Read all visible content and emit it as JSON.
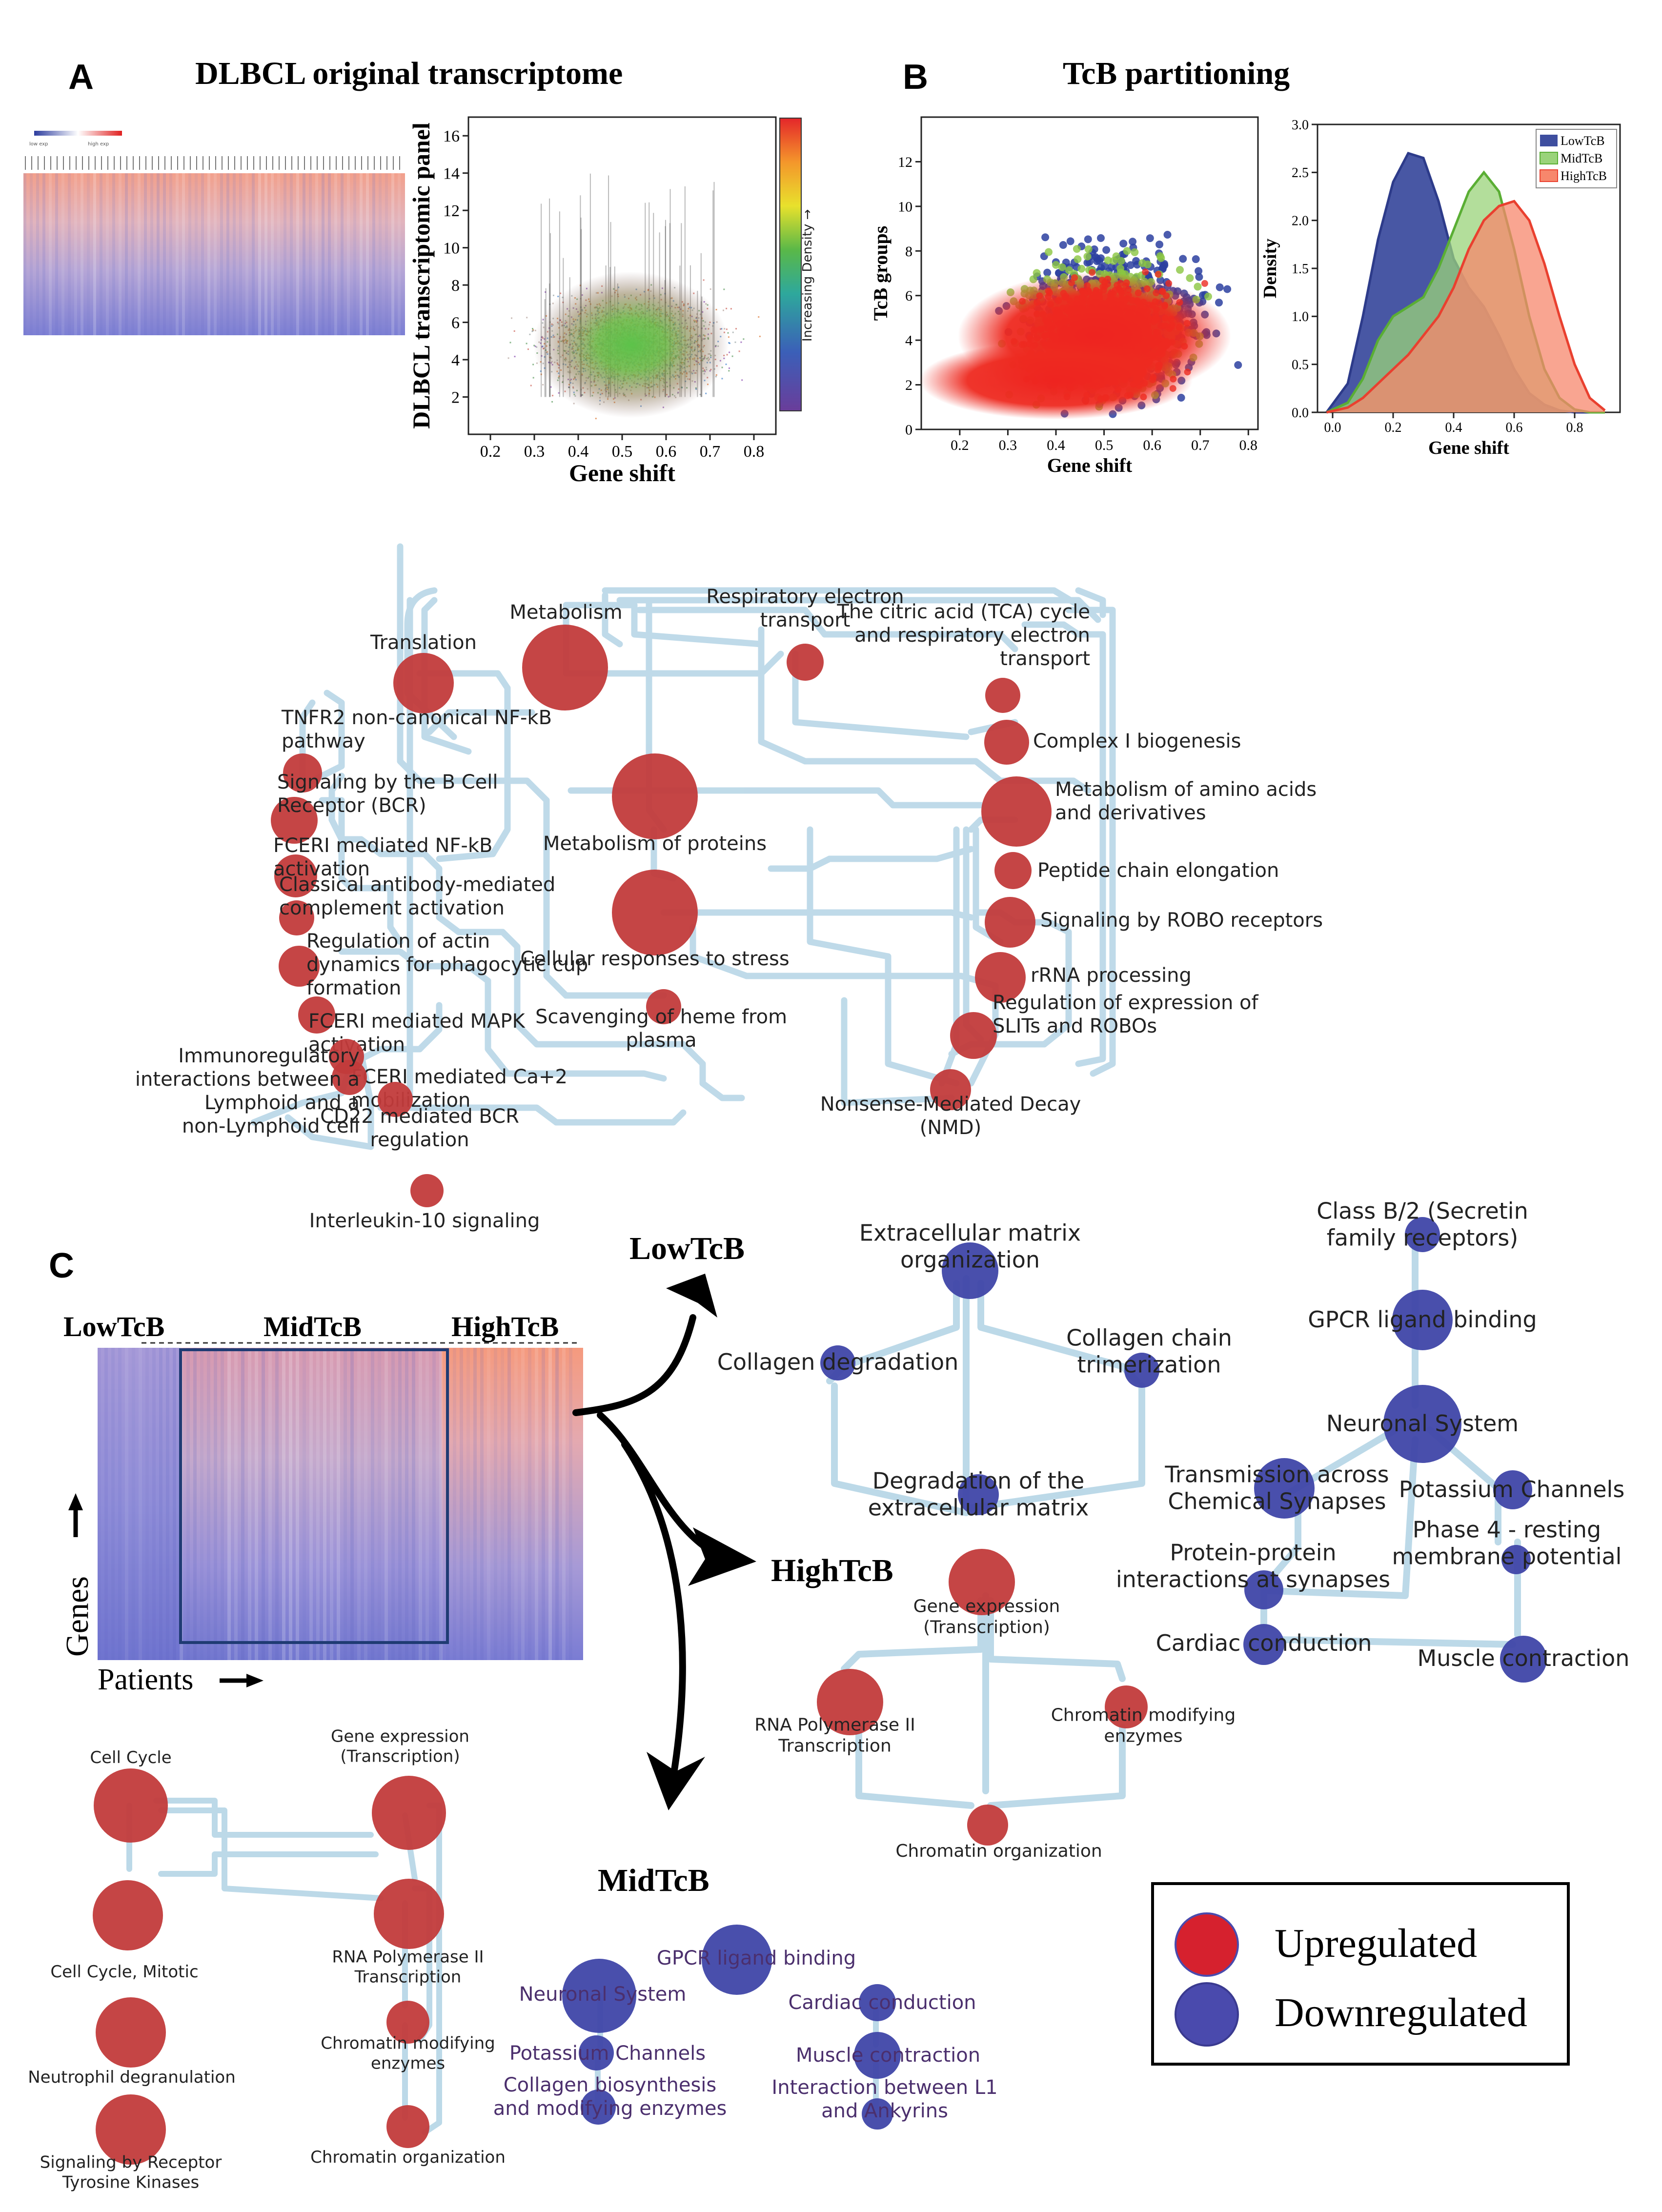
{
  "panel_a": {
    "letter": "A",
    "title": "DLBCL original transcriptome",
    "legend_low": "low exp",
    "legend_high": "high exp",
    "colorbar_label": "Increasing Density →"
  },
  "panel_b": {
    "letter": "B",
    "title": "TcB partitioning"
  },
  "panel_c": {
    "letter": "C",
    "heat_labels": [
      "LowTcB",
      "MidTcB",
      "HighTcB"
    ],
    "genes_label": "Genes",
    "patients_label": "Patients",
    "net_low_title": "LowTcB",
    "net_high_title": "HighTcB",
    "net_mid_title": "MidTcB"
  },
  "legend": {
    "upregulated": "Upregulated",
    "downregulated": "Downregulated",
    "up_color": "#d6212e",
    "down_color": "#4a4aad"
  },
  "colors": {
    "red_node": "#c23b3b",
    "blue_node": "#3f46a8",
    "edge": "#bcd9e8",
    "low": "#3e4e9f",
    "mid": "#7fc04d",
    "high": "#e9402f"
  },
  "chart_data": [
    {
      "id": "a-scatter",
      "type": "scatter",
      "xlabel": "Gene shift",
      "ylabel": "DLBCL transcriptomic panel",
      "xlim": [
        0.15,
        0.85
      ],
      "ylim": [
        0,
        17
      ],
      "x_ticks": [
        0.2,
        0.3,
        0.4,
        0.5,
        0.6,
        0.7,
        0.8
      ],
      "y_ticks": [
        2,
        4,
        6,
        8,
        10,
        12,
        14,
        16
      ],
      "colorbar": "Increasing Density →",
      "density_peak": {
        "x": 0.52,
        "y": 4.8
      }
    },
    {
      "id": "b-scatter",
      "type": "scatter",
      "xlabel": "Gene shift",
      "ylabel": "TcB groups",
      "xlim": [
        0.12,
        0.82
      ],
      "ylim": [
        0,
        14
      ],
      "x_ticks": [
        0.2,
        0.3,
        0.4,
        0.5,
        0.6,
        0.7,
        0.8
      ],
      "y_ticks": [
        0,
        2,
        4,
        6,
        8,
        10,
        12
      ],
      "series": [
        {
          "name": "LowTcB",
          "color": "#2c3fa0",
          "center": {
            "x": 0.52,
            "y": 4.8
          }
        },
        {
          "name": "MidTcB",
          "color": "#8bc541",
          "center": {
            "x": 0.5,
            "y": 4.5
          }
        },
        {
          "name": "HighTcB",
          "color": "#ec2a21",
          "center": {
            "x": 0.5,
            "y": 4.2
          }
        }
      ]
    },
    {
      "id": "b-density",
      "type": "area",
      "xlabel": "Gene shift",
      "ylabel": "Density",
      "xlim": [
        -0.05,
        0.95
      ],
      "ylim": [
        0,
        3.0
      ],
      "x_ticks": [
        0.0,
        0.2,
        0.4,
        0.6,
        0.8
      ],
      "y_ticks": [
        0.0,
        0.5,
        1.0,
        1.5,
        2.0,
        2.5,
        3.0
      ],
      "x": [
        -0.02,
        0.05,
        0.1,
        0.15,
        0.2,
        0.25,
        0.3,
        0.35,
        0.4,
        0.45,
        0.5,
        0.55,
        0.6,
        0.65,
        0.7,
        0.75,
        0.8,
        0.85,
        0.9
      ],
      "series": [
        {
          "name": "LowTcB",
          "values": [
            0.0,
            0.3,
            1.0,
            1.8,
            2.4,
            2.7,
            2.65,
            2.2,
            1.6,
            1.3,
            1.1,
            0.8,
            0.45,
            0.2,
            0.08,
            0.02,
            0.0,
            0.0,
            0.0
          ]
        },
        {
          "name": "MidTcB",
          "values": [
            0.0,
            0.1,
            0.35,
            0.75,
            1.0,
            1.1,
            1.2,
            1.5,
            1.9,
            2.3,
            2.5,
            2.3,
            1.7,
            1.0,
            0.45,
            0.15,
            0.03,
            0.0,
            0.0
          ]
        },
        {
          "name": "HighTcB",
          "values": [
            0.0,
            0.05,
            0.15,
            0.3,
            0.45,
            0.6,
            0.8,
            1.0,
            1.3,
            1.7,
            2.0,
            2.15,
            2.2,
            2.0,
            1.55,
            1.0,
            0.5,
            0.15,
            0.02
          ]
        }
      ]
    }
  ],
  "network_top": {
    "nodes": [
      {
        "id": "t1",
        "label": [
          "Metabolism"
        ],
        "color": "red",
        "size": 3
      },
      {
        "id": "t2",
        "label": [
          "Translation"
        ],
        "color": "red",
        "size": 2
      },
      {
        "id": "t3",
        "label": [
          "Respiratory electron",
          "transport"
        ],
        "color": "red",
        "size": 1
      },
      {
        "id": "t4",
        "label": [
          "The citric acid (TCA) cycle",
          "and respiratory electron",
          "transport"
        ],
        "color": "red",
        "size": 1
      },
      {
        "id": "t5",
        "label": [
          "Complex I biogenesis"
        ],
        "color": "red",
        "size": 1
      },
      {
        "id": "t6",
        "label": [
          "TNFR2 non-canonical NF-kB",
          "pathway"
        ],
        "color": "red",
        "size": 1
      },
      {
        "id": "t7",
        "label": [
          "Signaling by the B Cell",
          "Receptor (BCR)"
        ],
        "color": "red",
        "size": 1
      },
      {
        "id": "t8",
        "label": [
          "Metabolism of proteins"
        ],
        "color": "red",
        "size": 3
      },
      {
        "id": "t9",
        "label": [
          "Metabolism of amino acids",
          "and derivatives"
        ],
        "color": "red",
        "size": 2
      },
      {
        "id": "t10",
        "label": [
          "FCERI mediated NF-kB",
          "activation"
        ],
        "color": "red",
        "size": 1
      },
      {
        "id": "t11",
        "label": [
          "Peptide chain elongation"
        ],
        "color": "red",
        "size": 1
      },
      {
        "id": "t12",
        "label": [
          "Classical antibody-mediated",
          "complement activation"
        ],
        "color": "red",
        "size": 1
      },
      {
        "id": "t13",
        "label": [
          "Cellular responses to stress"
        ],
        "color": "red",
        "size": 3
      },
      {
        "id": "t14",
        "label": [
          "Signaling by ROBO receptors"
        ],
        "color": "red",
        "size": 1
      },
      {
        "id": "t15",
        "label": [
          "Regulation of actin",
          "dynamics for phagocytic cup",
          "formation"
        ],
        "color": "red",
        "size": 1
      },
      {
        "id": "t16",
        "label": [
          "rRNA processing"
        ],
        "color": "red",
        "size": 1
      },
      {
        "id": "t17",
        "label": [
          "Scavenging of heme from",
          "plasma"
        ],
        "color": "red",
        "size": 1
      },
      {
        "id": "t18",
        "label": [
          "Regulation of expression of",
          "SLITs and ROBOs"
        ],
        "color": "red",
        "size": 1
      },
      {
        "id": "t19",
        "label": [
          "FCERI mediated MAPK",
          "activation"
        ],
        "color": "red",
        "size": 1
      },
      {
        "id": "t20",
        "label": [
          "FCERI mediated Ca+2",
          "mobilization"
        ],
        "color": "red",
        "size": 1
      },
      {
        "id": "t21",
        "label": [
          "Immunoregulatory",
          "interactions between a",
          "Lymphoid and a",
          "non-Lymphoid cell"
        ],
        "color": "red",
        "size": 1
      },
      {
        "id": "t22",
        "label": [
          "Nonsense-Mediated Decay",
          "(NMD)"
        ],
        "color": "red",
        "size": 1
      },
      {
        "id": "t23",
        "label": [
          "CD22 mediated BCR",
          "regulation"
        ],
        "color": "red",
        "size": 1
      },
      {
        "id": "t24",
        "label": [
          "Interleukin-10 signaling"
        ],
        "color": "red",
        "size": 1
      }
    ]
  },
  "network_low": {
    "nodes": [
      {
        "id": "l1",
        "label": [
          "Extracellular matrix",
          "organization"
        ],
        "color": "blue",
        "size": 2
      },
      {
        "id": "l2",
        "label": [
          "Collagen degradation"
        ],
        "color": "blue",
        "size": 1
      },
      {
        "id": "l3",
        "label": [
          "Collagen chain",
          "trimerization"
        ],
        "color": "blue",
        "size": 1
      },
      {
        "id": "l4",
        "label": [
          "Degradation of the",
          "extracellular matrix"
        ],
        "color": "blue",
        "size": 1
      },
      {
        "id": "l5",
        "label": [
          "Class B/2 (Secretin",
          "family receptors)"
        ],
        "color": "blue",
        "size": 1
      },
      {
        "id": "l6",
        "label": [
          "GPCR ligand binding"
        ],
        "color": "blue",
        "size": 2
      },
      {
        "id": "l7",
        "label": [
          "Neuronal System"
        ],
        "color": "blue",
        "size": 2
      },
      {
        "id": "l8",
        "label": [
          "Transmission across",
          "Chemical Synapses"
        ],
        "color": "blue",
        "size": 2
      },
      {
        "id": "l9",
        "label": [
          "Potassium Channels"
        ],
        "color": "blue",
        "size": 1
      },
      {
        "id": "l10",
        "label": [
          "Protein-protein",
          "interactions at synapses"
        ],
        "color": "blue",
        "size": 1
      },
      {
        "id": "l11",
        "label": [
          "Phase 4 - resting",
          "membrane potential"
        ],
        "color": "blue",
        "size": 1
      },
      {
        "id": "l12",
        "label": [
          "Cardiac conduction"
        ],
        "color": "blue",
        "size": 1
      },
      {
        "id": "l13",
        "label": [
          "Muscle contraction"
        ],
        "color": "blue",
        "size": 1
      }
    ]
  },
  "network_high": {
    "nodes": [
      {
        "id": "h1",
        "label": [
          "Gene expression",
          "(Transcription)"
        ],
        "color": "red",
        "size": 2
      },
      {
        "id": "h2",
        "label": [
          "RNA Polymerase II",
          "Transcription"
        ],
        "color": "red",
        "size": 2
      },
      {
        "id": "h3",
        "label": [
          "Chromatin modifying",
          "enzymes"
        ],
        "color": "red",
        "size": 1
      },
      {
        "id": "h4",
        "label": [
          "Chromatin organization"
        ],
        "color": "red",
        "size": 1
      }
    ]
  },
  "network_mid_red": {
    "nodes": [
      {
        "id": "m1",
        "label": [
          "Cell Cycle"
        ],
        "color": "red",
        "size": 2
      },
      {
        "id": "m2",
        "label": [
          "Gene expression",
          "(Transcription)"
        ],
        "color": "red",
        "size": 2
      },
      {
        "id": "m3",
        "label": [
          "Cell Cycle, Mitotic"
        ],
        "color": "red",
        "size": 2
      },
      {
        "id": "m4",
        "label": [
          "RNA Polymerase II",
          "Transcription"
        ],
        "color": "red",
        "size": 2
      },
      {
        "id": "m5",
        "label": [
          "Chromatin modifying",
          "enzymes"
        ],
        "color": "red",
        "size": 1
      },
      {
        "id": "m6",
        "label": [
          "Neutrophil degranulation"
        ],
        "color": "red",
        "size": 2
      },
      {
        "id": "m7",
        "label": [
          "Chromatin organization"
        ],
        "color": "red",
        "size": 1
      },
      {
        "id": "m8",
        "label": [
          "Signaling by Receptor",
          "Tyrosine Kinases"
        ],
        "color": "red",
        "size": 2
      }
    ]
  },
  "network_mid_blue": {
    "nodes": [
      {
        "id": "b1",
        "label": [
          "GPCR ligand binding"
        ],
        "color": "blue",
        "size": 2
      },
      {
        "id": "b2",
        "label": [
          "Neuronal System"
        ],
        "color": "blue",
        "size": 2
      },
      {
        "id": "b3",
        "label": [
          "Cardiac conduction"
        ],
        "color": "blue",
        "size": 1
      },
      {
        "id": "b4",
        "label": [
          "Potassium Channels"
        ],
        "color": "blue",
        "size": 1
      },
      {
        "id": "b5",
        "label": [
          "Muscle contraction"
        ],
        "color": "blue",
        "size": 1
      },
      {
        "id": "b6",
        "label": [
          "Collagen biosynthesis",
          "and modifying enzymes"
        ],
        "color": "blue",
        "size": 1
      },
      {
        "id": "b7",
        "label": [
          "Interaction between L1",
          "and Ankyrins"
        ],
        "color": "blue",
        "size": 1
      }
    ]
  }
}
